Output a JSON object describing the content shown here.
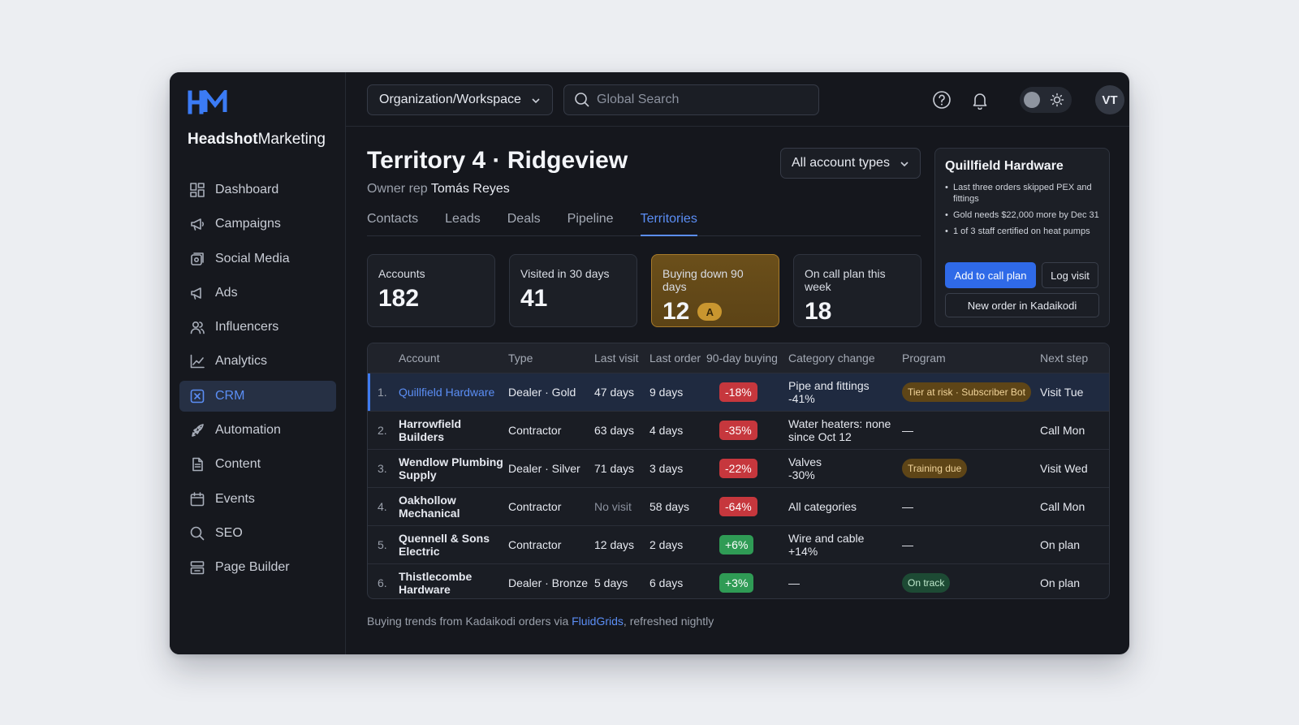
{
  "brand": {
    "bold": "Headshot",
    "regular": "Marketing"
  },
  "nav": [
    {
      "label": "Dashboard",
      "icon": "dashboard-icon"
    },
    {
      "label": "Campaigns",
      "icon": "megaphone-icon"
    },
    {
      "label": "Social Media",
      "icon": "social-icon"
    },
    {
      "label": "Ads",
      "icon": "ads-icon"
    },
    {
      "label": "Influencers",
      "icon": "users-icon"
    },
    {
      "label": "Analytics",
      "icon": "chart-icon"
    },
    {
      "label": "CRM",
      "icon": "crm-icon",
      "active": true
    },
    {
      "label": "Automation",
      "icon": "rocket-icon"
    },
    {
      "label": "Content",
      "icon": "document-icon"
    },
    {
      "label": "Events",
      "icon": "calendar-icon"
    },
    {
      "label": "SEO",
      "icon": "search-icon"
    },
    {
      "label": "Page Builder",
      "icon": "layout-icon"
    }
  ],
  "topbar": {
    "workspace": "Organization/Workspace",
    "search_placeholder": "Global Search",
    "avatar": "VT"
  },
  "header": {
    "title": "Territory 4 · Ridgeview",
    "owner_label": "Owner rep",
    "owner_name": "Tomás Reyes",
    "filter": "All account types"
  },
  "tabs": [
    {
      "label": "Contacts"
    },
    {
      "label": "Leads"
    },
    {
      "label": "Deals"
    },
    {
      "label": "Pipeline"
    },
    {
      "label": "Territories",
      "active": true
    }
  ],
  "kpis": [
    {
      "label": "Accounts",
      "value": "182"
    },
    {
      "label": "Visited in 30 days",
      "value": "41"
    },
    {
      "label": "Buying down 90 days",
      "value": "12",
      "badge": "A",
      "warn": true
    },
    {
      "label": "On call plan this week",
      "value": "18"
    }
  ],
  "side_card": {
    "title": "Quillfield Hardware",
    "notes": [
      "Last three orders skipped PEX and fittings",
      "Gold needs $22,000 more by Dec 31",
      "1 of 3 staff certified on heat pumps"
    ],
    "add_button": "Add to call plan",
    "log_button": "Log visit",
    "order_button": "New order in Kadaikodi"
  },
  "table": {
    "headers": [
      "",
      "Account",
      "Type",
      "Last visit",
      "Last order",
      "90-day buying",
      "Category change",
      "Program",
      "Next step"
    ],
    "rows": [
      {
        "num": "1.",
        "account": "Quillfield Hardware",
        "type": "Dealer · Gold",
        "last_visit": "47 days",
        "last_order": "9 days",
        "buying": "-18%",
        "buying_dir": "neg",
        "category": "Pipe and fittings",
        "category_change": "-41%",
        "program": "Tier at risk · Subscriber Bot",
        "program_style": "amber",
        "next": "Visit Tue",
        "selected": true
      },
      {
        "num": "2.",
        "account": "Harrowfield Builders",
        "type": "Contractor",
        "last_visit": "63 days",
        "last_order": "4 days",
        "buying": "-35%",
        "buying_dir": "neg",
        "category": "Water heaters: none since Oct 12",
        "category_change": "",
        "program": "—",
        "program_style": "",
        "next": "Call Mon"
      },
      {
        "num": "3.",
        "account": "Wendlow Plumbing Supply",
        "type": "Dealer · Silver",
        "last_visit": "71 days",
        "last_order": "3 days",
        "buying": "-22%",
        "buying_dir": "neg",
        "category": "Valves",
        "category_change": "-30%",
        "program": "Training due",
        "program_style": "amber",
        "next": "Visit Wed"
      },
      {
        "num": "4.",
        "account": "Oakhollow Mechanical",
        "type": "Contractor",
        "last_visit": "No visit",
        "last_visit_dim": true,
        "last_order": "58 days",
        "buying": "-64%",
        "buying_dir": "neg",
        "category": "All categories",
        "category_change": "",
        "program": "—",
        "program_style": "",
        "next": "Call Mon"
      },
      {
        "num": "5.",
        "account": "Quennell & Sons Electric",
        "type": "Contractor",
        "last_visit": "12 days",
        "last_order": "2 days",
        "buying": "+6%",
        "buying_dir": "pos",
        "category": "Wire and cable",
        "category_change": "+14%",
        "program": "—",
        "program_style": "",
        "next": "On plan"
      },
      {
        "num": "6.",
        "account": "Thistlecombe Hardware",
        "type": "Dealer · Bronze",
        "last_visit": "5 days",
        "last_order": "6 days",
        "buying": "+3%",
        "buying_dir": "pos",
        "category": "—",
        "category_change": "",
        "program": "On track",
        "program_style": "green",
        "next": "On plan"
      }
    ]
  },
  "footnote": {
    "before": "Buying trends from Kadaikodi orders via ",
    "link": "FluidGrids",
    "after": ", refreshed nightly"
  },
  "colors": {
    "accent": "#2f6ae8",
    "link": "#5b8ef5",
    "negative": "#c6373d",
    "positive": "#2f9b55",
    "warning": "#c9962f"
  }
}
